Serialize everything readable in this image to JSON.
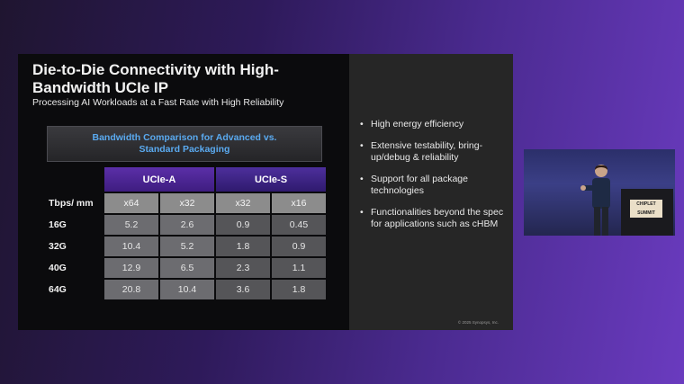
{
  "slide": {
    "title": "Die-to-Die Connectivity with High-Bandwidth UCIe IP",
    "subtitle": "Processing AI Workloads at a Fast Rate with High Reliability",
    "banner": "Bandwidth Comparison for Advanced vs. Standard Packaging",
    "table": {
      "groups": [
        "UCIe-A",
        "UCIe-S"
      ],
      "header_label": "Tbps/ mm",
      "columns": [
        "x64",
        "x32",
        "x32",
        "x16"
      ],
      "rows": [
        {
          "label": "16G",
          "values": [
            "5.2",
            "2.6",
            "0.9",
            "0.45"
          ]
        },
        {
          "label": "32G",
          "values": [
            "10.4",
            "5.2",
            "1.8",
            "0.9"
          ]
        },
        {
          "label": "40G",
          "values": [
            "12.9",
            "6.5",
            "2.3",
            "1.1"
          ]
        },
        {
          "label": "64G",
          "values": [
            "20.8",
            "10.4",
            "3.6",
            "1.8"
          ]
        }
      ]
    },
    "bullets": [
      "High energy efficiency",
      "Extensive testability, bring-up/debug & reliability",
      "Support for all package technologies",
      "Functionalities beyond the spec for applications such as cHBM"
    ],
    "copyright": "© 2025 Synopsys, Inc."
  },
  "speaker_inset": {
    "podium_sign": "CHIPLET SUMMIT"
  }
}
